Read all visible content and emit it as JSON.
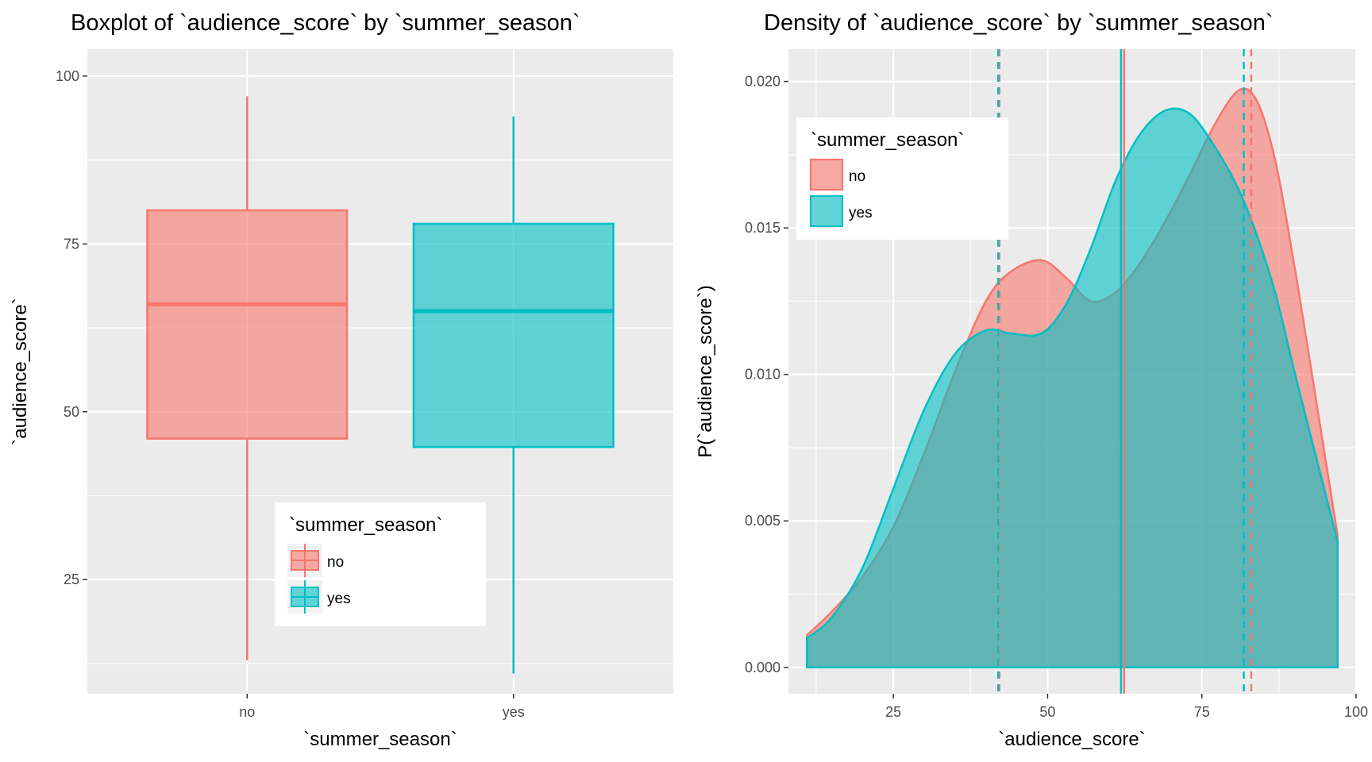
{
  "colors": {
    "no": "#F8766D",
    "yes": "#00BFC4",
    "panel": "#EBEBEB",
    "grid": "#FFFFFF",
    "tick_text": "#4D4D4D"
  },
  "chart_data": [
    {
      "type": "boxplot",
      "title": "Boxplot of `audience_score` by `summer_season`",
      "xlabel": "`summer_season`",
      "ylabel": "`audience_score`",
      "categories": [
        "no",
        "yes"
      ],
      "ylim": [
        8,
        104
      ],
      "yticks": [
        25,
        50,
        75,
        100
      ],
      "ytick_labels": [
        "25",
        "50",
        "75",
        "100"
      ],
      "boxes": [
        {
          "name": "no",
          "min": 13,
          "q1": 46,
          "median": 66,
          "q3": 80,
          "max": 97
        },
        {
          "name": "yes",
          "min": 11,
          "q1": 44.75,
          "median": 65,
          "q3": 78,
          "max": 94
        }
      ],
      "grid": true,
      "legend": {
        "title": "`summer_season`",
        "entries": [
          "no",
          "yes"
        ],
        "position": "bottom-center"
      }
    },
    {
      "type": "area",
      "title": "Density of `audience_score` by `summer_season`",
      "xlabel": "`audience_score`",
      "ylabel": "P(`audience_score`)",
      "xlim": [
        8,
        100
      ],
      "ylim": [
        -0.0009,
        0.0211
      ],
      "xticks": [
        25,
        50,
        75,
        100
      ],
      "xtick_labels": [
        "25",
        "50",
        "75",
        "100"
      ],
      "yticks": [
        0.0,
        0.005,
        0.01,
        0.015,
        0.02
      ],
      "ytick_labels": [
        "0.000",
        "0.005",
        "0.010",
        "0.015",
        "0.020"
      ],
      "series": [
        {
          "name": "no",
          "x": [
            11,
            15,
            20,
            25,
            30,
            35,
            40,
            44,
            49,
            53,
            57,
            61,
            65,
            69,
            73,
            77,
            81,
            84,
            87,
            90,
            93,
            97
          ],
          "y": [
            0.0011,
            0.0019,
            0.0031,
            0.0048,
            0.0073,
            0.0101,
            0.0125,
            0.0135,
            0.0139,
            0.0133,
            0.0125,
            0.0128,
            0.0138,
            0.0152,
            0.0168,
            0.0185,
            0.0197,
            0.0193,
            0.0172,
            0.0137,
            0.0098,
            0.0045
          ],
          "mean": 62.4,
          "q1": 42.2,
          "q3": 83.0
        },
        {
          "name": "yes",
          "x": [
            11,
            15,
            20,
            25,
            30,
            35,
            40,
            44,
            49,
            53,
            57,
            61,
            65,
            69,
            73,
            77,
            81,
            84,
            87,
            90,
            93,
            97
          ],
          "y": [
            0.001,
            0.0017,
            0.0034,
            0.0061,
            0.0088,
            0.0107,
            0.0115,
            0.0114,
            0.0114,
            0.0124,
            0.0143,
            0.0166,
            0.0182,
            0.019,
            0.0189,
            0.0178,
            0.0163,
            0.0147,
            0.0127,
            0.0101,
            0.0076,
            0.0043
          ],
          "mean": 61.9,
          "q1": 42.0,
          "q3": 81.8
        }
      ],
      "vertical_lines": "solid line at each group's mean; dashed lines at each group's 25th and 75th percentiles",
      "grid": true,
      "legend": {
        "title": "`summer_season`",
        "entries": [
          "no",
          "yes"
        ],
        "position": "top-left"
      }
    }
  ]
}
